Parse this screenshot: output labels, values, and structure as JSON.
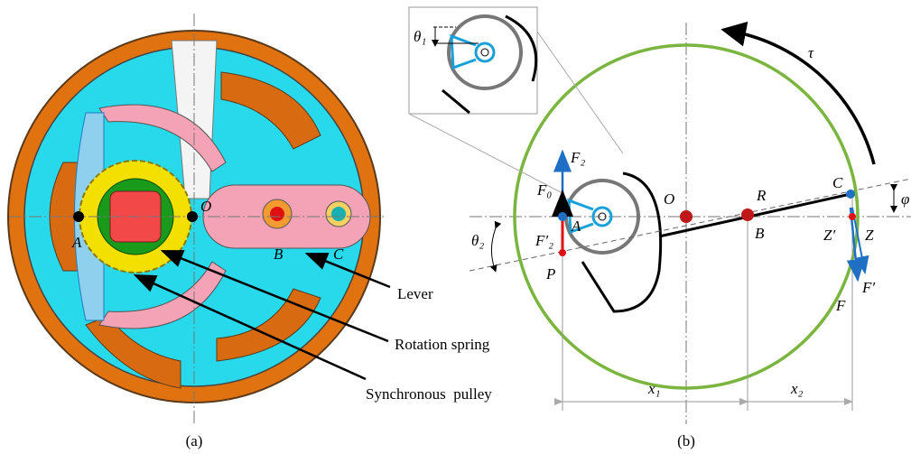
{
  "panel_a": {
    "caption": "(a)",
    "points": [
      "A",
      "O",
      "B",
      "C"
    ],
    "callouts": [
      "Lever",
      "Rotation spring",
      "Synchronous  pulley"
    ]
  },
  "panel_b": {
    "caption": "(b)",
    "inset_angle": "θ₁",
    "torque": "τ",
    "forces": [
      "F₂",
      "F₀",
      "F′₂",
      "F",
      "F′"
    ],
    "points": [
      "A",
      "P",
      "O",
      "R",
      "B",
      "C",
      "Z′",
      "Z"
    ],
    "angles": [
      "θ₂",
      "φ"
    ],
    "dimensions": [
      "x₁",
      "x₂"
    ]
  }
}
